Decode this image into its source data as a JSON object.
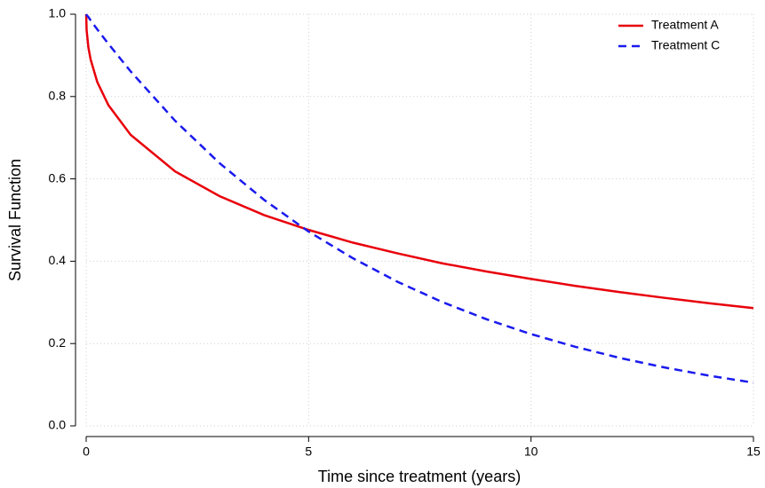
{
  "chart_data": {
    "type": "line",
    "x_label": "Time since treatment (years)",
    "y_label": "Survival Function",
    "x": [
      0,
      0.01,
      0.05,
      0.1,
      0.25,
      0.5,
      1,
      2,
      3,
      4,
      5,
      6,
      7,
      8,
      9,
      10,
      11,
      12,
      13,
      14,
      15
    ],
    "series": [
      {
        "name": "Treatment A",
        "color": "#e8000b",
        "dash": "solid",
        "values": [
          1.0,
          0.961,
          0.919,
          0.89,
          0.835,
          0.779,
          0.707,
          0.618,
          0.558,
          0.512,
          0.476,
          0.445,
          0.419,
          0.395,
          0.375,
          0.357,
          0.34,
          0.325,
          0.311,
          0.298,
          0.286
        ]
      },
      {
        "name": "Treatment C",
        "color": "#1a1aee",
        "dash": "dashed",
        "values": [
          1.0,
          0.998,
          0.993,
          0.985,
          0.963,
          0.928,
          0.861,
          0.741,
          0.638,
          0.549,
          0.472,
          0.407,
          0.35,
          0.301,
          0.259,
          0.223,
          0.192,
          0.165,
          0.142,
          0.122,
          0.105
        ]
      }
    ],
    "xlim": [
      0,
      15
    ],
    "xticks": [
      0,
      5,
      10,
      15
    ],
    "ylim": [
      0,
      1
    ],
    "yticks": [
      {
        "value": 0,
        "label": "0.0"
      },
      {
        "value": 0.2,
        "label": "0.2"
      },
      {
        "value": 0.4,
        "label": "0.4"
      },
      {
        "value": 0.6,
        "label": "0.6"
      },
      {
        "value": 0.8,
        "label": "0.8"
      },
      {
        "value": 1,
        "label": "1.0"
      }
    ],
    "grid": true,
    "legend": "top-right"
  }
}
